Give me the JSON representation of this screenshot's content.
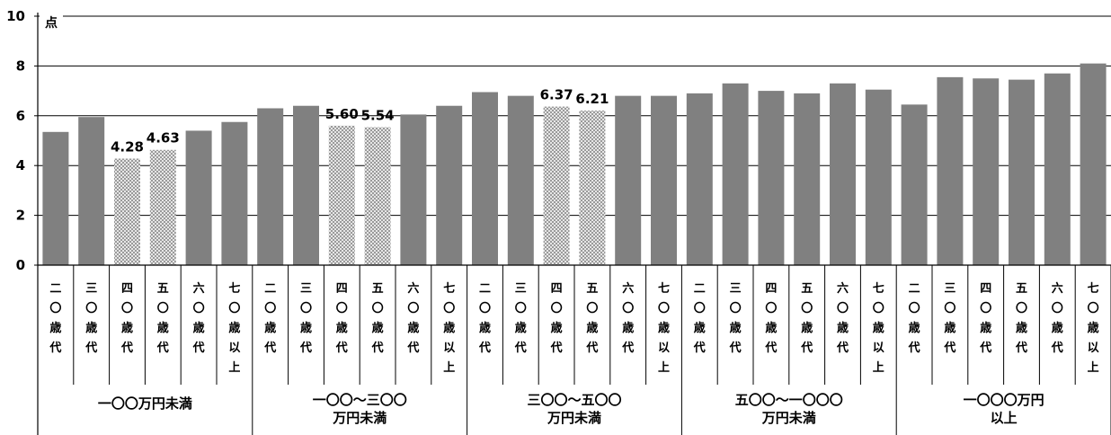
{
  "chart_data": {
    "type": "bar",
    "unit": "点",
    "ylim": [
      0,
      10
    ],
    "yticks": [
      "0",
      "2",
      "4",
      "6",
      "8",
      "10"
    ],
    "grid": true,
    "colors": {
      "bar": "#808080",
      "highlight": "#c8c8c8",
      "grid": "#000000"
    },
    "categories": [
      "二〇歳代",
      "三〇歳代",
      "四〇歳代",
      "五〇歳代",
      "六〇歳代",
      "七〇歳以上"
    ],
    "groups": [
      {
        "label_lines": [
          "一〇〇万円未満"
        ],
        "values": [
          5.35,
          5.95,
          4.28,
          4.63,
          5.4,
          5.75
        ]
      },
      {
        "label_lines": [
          "一〇〇～三〇〇",
          "万円未満"
        ],
        "values": [
          6.3,
          6.4,
          5.6,
          5.54,
          6.05,
          6.4
        ]
      },
      {
        "label_lines": [
          "三〇〇～五〇〇",
          "万円未満"
        ],
        "values": [
          6.95,
          6.8,
          6.37,
          6.21,
          6.8,
          6.8
        ]
      },
      {
        "label_lines": [
          "五〇〇～一〇〇〇",
          "万円未満"
        ],
        "values": [
          6.9,
          7.3,
          7.0,
          6.9,
          7.3,
          7.05
        ]
      },
      {
        "label_lines": [
          "一〇〇〇万円",
          "以上"
        ],
        "values": [
          6.45,
          7.55,
          7.5,
          7.45,
          7.7,
          8.1
        ]
      }
    ],
    "highlighted": [
      {
        "group": 0,
        "category": 2,
        "label": "4.28"
      },
      {
        "group": 0,
        "category": 3,
        "label": "4.63"
      },
      {
        "group": 1,
        "category": 2,
        "label": "5.60"
      },
      {
        "group": 1,
        "category": 3,
        "label": "5.54"
      },
      {
        "group": 2,
        "category": 2,
        "label": "6.37"
      },
      {
        "group": 2,
        "category": 3,
        "label": "6.21"
      }
    ]
  }
}
